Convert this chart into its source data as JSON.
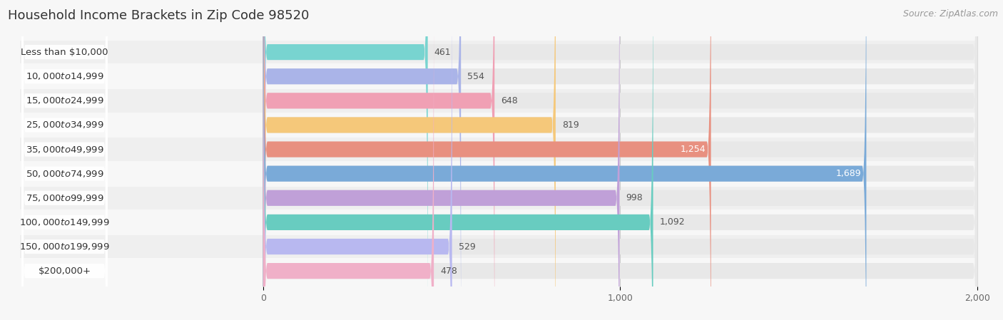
{
  "title": "Household Income Brackets in Zip Code 98520",
  "source": "Source: ZipAtlas.com",
  "categories": [
    "Less than $10,000",
    "$10,000 to $14,999",
    "$15,000 to $24,999",
    "$25,000 to $34,999",
    "$35,000 to $49,999",
    "$50,000 to $74,999",
    "$75,000 to $99,999",
    "$100,000 to $149,999",
    "$150,000 to $199,999",
    "$200,000+"
  ],
  "values": [
    461,
    554,
    648,
    819,
    1254,
    1689,
    998,
    1092,
    529,
    478
  ],
  "bar_colors": [
    "#78d4d0",
    "#aab4e8",
    "#f0a0b4",
    "#f5c87a",
    "#e89080",
    "#7aaad8",
    "#c0a0d8",
    "#68ccc0",
    "#b8b8f0",
    "#f0b0c8"
  ],
  "xlim_left": -680,
  "xlim_right": 2000,
  "xticks": [
    0,
    1000,
    2000
  ],
  "background_color": "#f7f7f7",
  "bar_bg_color": "#e8e8e8",
  "row_bg_color": "#f0f0f0",
  "title_fontsize": 13,
  "source_fontsize": 9,
  "bar_height": 0.65,
  "label_fontsize": 9.5,
  "value_fontsize": 9,
  "value_label_inside": [
    false,
    false,
    false,
    false,
    true,
    true,
    false,
    false,
    false,
    false
  ]
}
